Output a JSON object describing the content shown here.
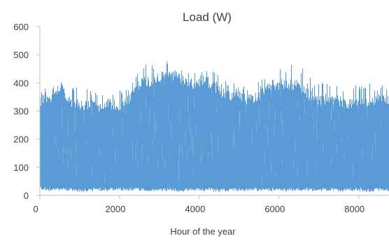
{
  "chart_data": {
    "type": "area",
    "title": "Load (W)",
    "xlabel": "Hour of the year",
    "ylabel": "",
    "xlim": [
      0,
      8760
    ],
    "ylim": [
      0,
      600
    ],
    "x_ticks": [
      0,
      2000,
      4000,
      6000,
      8000
    ],
    "y_ticks": [
      0,
      100,
      200,
      300,
      400,
      500,
      600
    ],
    "grid": false,
    "legend": "none",
    "series": [
      {
        "color": "#5b9bd5",
        "x": [
          0,
          250,
          500,
          750,
          1000,
          1250,
          1500,
          1750,
          2000,
          2250,
          2500,
          2750,
          3000,
          3250,
          3500,
          3750,
          4000,
          4250,
          4500,
          4750,
          5000,
          5250,
          5500,
          5750,
          6000,
          6250,
          6500,
          6750,
          7000,
          7250,
          7500,
          7750,
          8000,
          8250,
          8500,
          8760
        ],
        "upper": [
          340,
          350,
          395,
          340,
          325,
          330,
          320,
          330,
          320,
          345,
          400,
          410,
          425,
          440,
          420,
          395,
          410,
          405,
          375,
          360,
          350,
          345,
          360,
          395,
          400,
          400,
          395,
          360,
          345,
          345,
          340,
          330,
          345,
          335,
          345,
          340
        ],
        "peak": [
          385,
          375,
          420,
          390,
          390,
          400,
          370,
          380,
          375,
          390,
          460,
          475,
          490,
          480,
          470,
          430,
          440,
          450,
          425,
          405,
          400,
          395,
          415,
          450,
          455,
          460,
          490,
          420,
          410,
          400,
          395,
          385,
          405,
          410,
          405,
          395
        ],
        "lower": [
          20,
          15,
          15,
          15,
          12,
          15,
          15,
          15,
          15,
          15,
          15,
          12,
          12,
          15,
          12,
          15,
          15,
          15,
          12,
          15,
          15,
          15,
          15,
          15,
          12,
          15,
          15,
          15,
          15,
          15,
          12,
          15,
          15,
          12,
          15,
          15
        ]
      }
    ]
  }
}
